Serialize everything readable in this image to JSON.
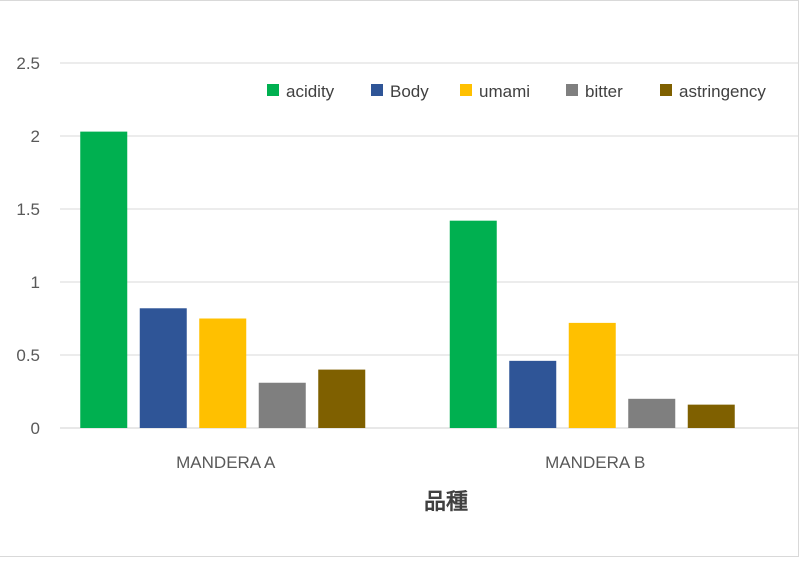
{
  "chart_data": {
    "type": "bar",
    "title": "",
    "xlabel": "品種",
    "ylabel": "",
    "ylim": [
      0,
      2.5
    ],
    "yticks": [
      "0",
      "0.5",
      "1",
      "1.5",
      "2",
      "2.5"
    ],
    "ytick_values": [
      0,
      0.5,
      1,
      1.5,
      2,
      2.5
    ],
    "grid": true,
    "legend_position": "top-right",
    "categories": [
      "MANDERA A",
      "MANDERA B"
    ],
    "series": [
      {
        "name": "acidity",
        "color": "#00b050",
        "values": [
          2.03,
          1.42
        ]
      },
      {
        "name": "Body",
        "color": "#2f5597",
        "values": [
          0.82,
          0.46
        ]
      },
      {
        "name": "umami",
        "color": "#ffc000",
        "values": [
          0.75,
          0.72
        ]
      },
      {
        "name": "bitter",
        "color": "#7f7f7f",
        "values": [
          0.31,
          0.2
        ]
      },
      {
        "name": "astringency",
        "color": "#7f6000",
        "values": [
          0.4,
          0.16
        ]
      }
    ]
  }
}
